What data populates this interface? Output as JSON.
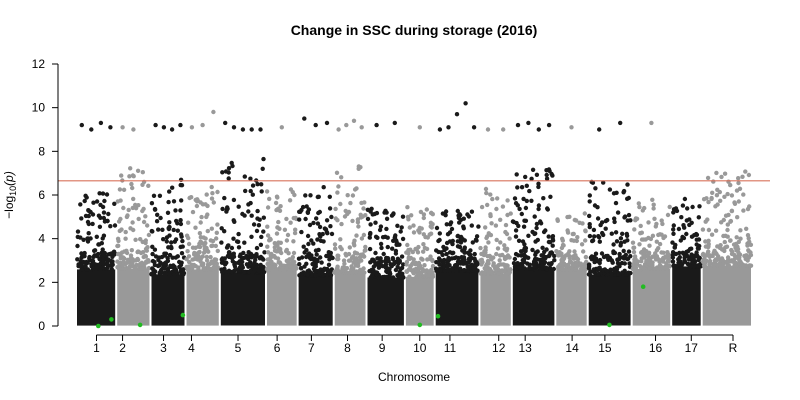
{
  "chart_data": {
    "type": "scatter",
    "subtype": "manhattan",
    "title": "Change in SSC during storage (2016)",
    "xlabel": "Chromosome",
    "ylabel_prefix": "−log",
    "ylabel_sub": "10",
    "ylabel_suffix": "(p)",
    "ylim": [
      0,
      12
    ],
    "yticks": [
      0,
      2,
      4,
      6,
      8,
      10,
      12
    ],
    "threshold": 6.65,
    "colors": {
      "odd": "#1a1a1a",
      "even": "#999999",
      "threshold": "#d9735c",
      "highlight": "#22bb22"
    },
    "grid": false,
    "chromosomes": [
      {
        "label": "1",
        "span": [
          1.0,
          2.08
        ],
        "tick": 1.55,
        "peak": 6.1,
        "top": [
          9.2,
          9.0,
          9.3,
          9.1
        ]
      },
      {
        "label": "2",
        "span": [
          2.08,
          3.0
        ],
        "tick": 2.25,
        "peak": 7.3,
        "top": [
          9.1,
          9.0,
          6.6
        ]
      },
      {
        "label": "3",
        "span": [
          3.0,
          3.94
        ],
        "tick": 3.35,
        "peak": 6.8,
        "top": [
          9.2,
          9.1,
          9.0,
          9.2
        ]
      },
      {
        "label": "4",
        "span": [
          3.94,
          4.86
        ],
        "tick": 4.1,
        "peak": 6.4,
        "top": [
          9.1,
          9.2,
          9.8
        ]
      },
      {
        "label": "5",
        "span": [
          4.86,
          6.1
        ],
        "tick": 5.35,
        "peak": 7.7,
        "top": [
          9.3,
          9.1,
          9.0,
          9.0,
          9.0
        ]
      },
      {
        "label": "6",
        "span": [
          6.1,
          6.95
        ],
        "tick": 6.4,
        "peak": 6.3,
        "top": [
          9.1
        ]
      },
      {
        "label": "7",
        "span": [
          6.95,
          7.92
        ],
        "tick": 7.32,
        "peak": 6.5,
        "top": [
          9.5,
          9.2,
          9.3
        ]
      },
      {
        "label": "8",
        "span": [
          7.92,
          8.8
        ],
        "tick": 8.29,
        "peak": 7.5,
        "top": [
          9.0,
          9.2,
          9.4,
          9.1
        ]
      },
      {
        "label": "9",
        "span": [
          8.8,
          9.83
        ],
        "tick": 9.22,
        "peak": 5.4,
        "top": [
          9.2,
          9.3
        ]
      },
      {
        "label": "10",
        "span": [
          9.83,
          10.63
        ],
        "tick": 10.23,
        "peak": 5.5,
        "top": [
          9.1
        ]
      },
      {
        "label": "11",
        "span": [
          10.63,
          11.83
        ],
        "tick": 11.04,
        "peak": 5.3,
        "top": [
          9.0,
          9.1,
          9.7,
          10.2,
          9.1
        ]
      },
      {
        "label": "12",
        "span": [
          11.83,
          12.7
        ],
        "tick": 12.35,
        "peak": 6.3,
        "top": [
          9.0,
          9.0
        ]
      },
      {
        "label": "13",
        "span": [
          12.7,
          13.87
        ],
        "tick": 13.06,
        "peak": 7.2,
        "top": [
          9.2,
          9.3,
          9.0,
          9.2
        ]
      },
      {
        "label": "14",
        "span": [
          13.87,
          14.74
        ],
        "tick": 14.32,
        "peak": 5.3,
        "top": [
          9.1
        ]
      },
      {
        "label": "15",
        "span": [
          14.74,
          15.92
        ],
        "tick": 15.2,
        "peak": 6.6,
        "top": [
          9.0,
          9.3
        ]
      },
      {
        "label": "16",
        "span": [
          15.92,
          16.98
        ],
        "tick": 16.56,
        "peak": 5.8,
        "top": [
          9.3
        ]
      },
      {
        "label": "17",
        "span": [
          16.98,
          17.8
        ],
        "tick": 17.52,
        "peak": 5.9,
        "top": []
      },
      {
        "label": "R",
        "span": [
          17.8,
          19.15
        ],
        "tick": 18.64,
        "peak": 7.2,
        "top": []
      }
    ],
    "highlight_points": [
      {
        "x": 1.6,
        "y": 0.0
      },
      {
        "x": 1.95,
        "y": 0.3
      },
      {
        "x": 2.72,
        "y": 0.05
      },
      {
        "x": 3.87,
        "y": 0.5
      },
      {
        "x": 10.23,
        "y": 0.05
      },
      {
        "x": 10.72,
        "y": 0.45
      },
      {
        "x": 15.32,
        "y": 0.05
      },
      {
        "x": 16.23,
        "y": 1.8
      }
    ]
  }
}
